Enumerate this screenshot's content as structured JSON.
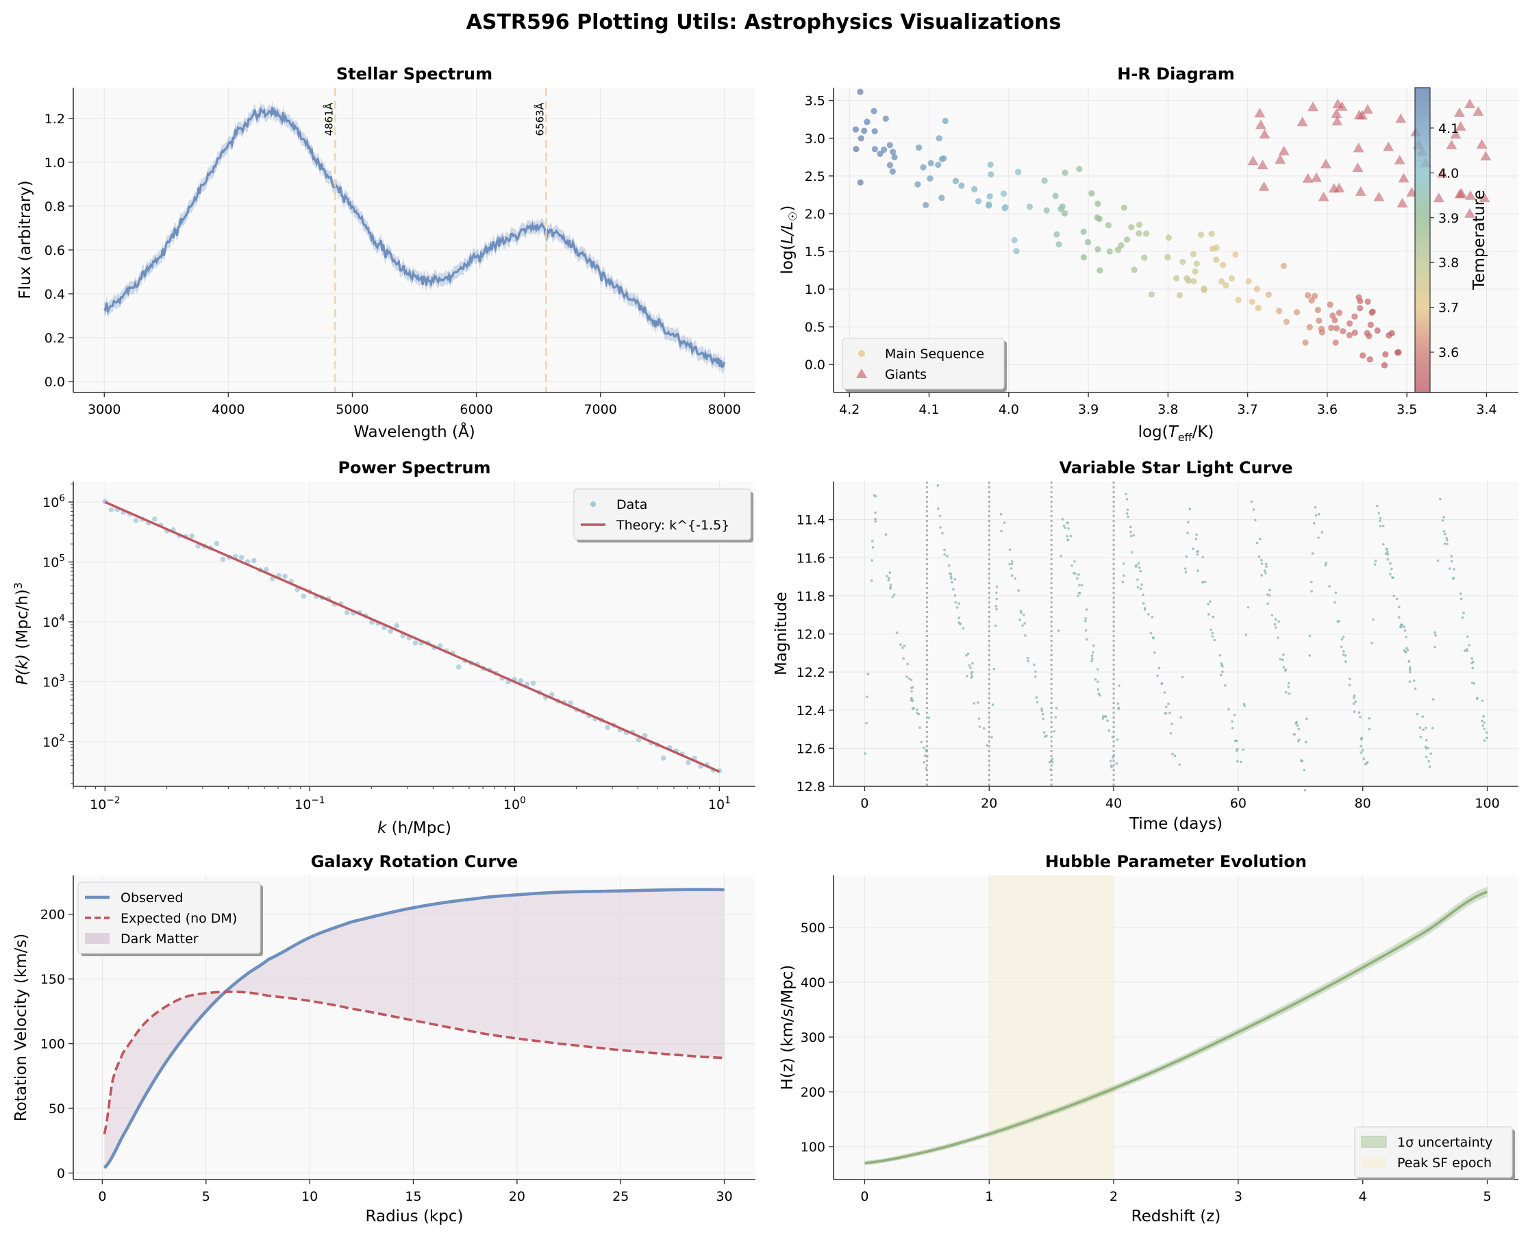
{
  "figure_title": "ASTR596 Plotting Utils: Astrophysics Visualizations",
  "colors": {
    "blue": "#6e8fbe",
    "red": "#c0555e",
    "green": "#8fb07a",
    "teal": "#8cc0c4",
    "panel_bg": "#f9f9f9",
    "grid": "#e6e6e6",
    "fill_purple": "#e0d0dd",
    "band_yellow": "#f5f0df",
    "peach": "#f5cf9e"
  },
  "chart_data": [
    {
      "type": "line",
      "title": "Stellar Spectrum",
      "xlabel": "Wavelength (Å)",
      "ylabel": "Flux (arbitrary)",
      "xlim": [
        2750,
        8250
      ],
      "ylim": [
        -0.05,
        1.34
      ],
      "xticks": [
        3000,
        4000,
        5000,
        6000,
        7000,
        8000
      ],
      "yticks": [
        0.0,
        0.2,
        0.4,
        0.6,
        0.8,
        1.0,
        1.2
      ],
      "series": [
        {
          "x": [
            3000,
            3250,
            3500,
            3750,
            4000,
            4250,
            4500,
            4750,
            5000,
            5250,
            5500,
            5750,
            6000,
            6250,
            6500,
            6750,
            7000,
            7250,
            7500,
            7750,
            8000
          ],
          "y": [
            0.32,
            0.45,
            0.62,
            0.85,
            1.08,
            1.22,
            1.18,
            0.98,
            0.8,
            0.6,
            0.48,
            0.47,
            0.57,
            0.65,
            0.7,
            0.63,
            0.5,
            0.37,
            0.25,
            0.15,
            0.08
          ]
        }
      ],
      "lines": [
        {
          "x": 4861,
          "label": "4861Å"
        },
        {
          "x": 6563,
          "label": "6563Å"
        }
      ]
    },
    {
      "type": "scatter",
      "title": "H-R Diagram",
      "xlabel": "log(T_eff/K)",
      "ylabel": "log(L/L☉)",
      "xlim": [
        4.22,
        3.36
      ],
      "ylim": [
        -0.37,
        3.67
      ],
      "xticks": [
        4.2,
        4.1,
        4.0,
        3.9,
        3.8,
        3.7,
        3.6,
        3.5,
        3.4
      ],
      "yticks": [
        0.0,
        0.5,
        1.0,
        1.5,
        2.0,
        2.5,
        3.0,
        3.5
      ],
      "colorbar": {
        "label": "Temperature",
        "range": [
          3.51,
          4.19
        ],
        "ticks": [
          3.6,
          3.7,
          3.8,
          3.9,
          4.0,
          4.1
        ]
      },
      "legend": [
        "Main Sequence",
        "Giants"
      ],
      "legend_loc": "lower-left",
      "main_sequence": {
        "logT_range": [
          4.2,
          3.51
        ],
        "logL_trend": [
          3.0,
          0.3
        ]
      },
      "giants": {
        "logT_range": [
          3.4,
          3.7
        ],
        "logL_range": [
          2.0,
          3.5
        ]
      }
    },
    {
      "type": "scatter",
      "title": "Power Spectrum",
      "xlabel": "k (h/Mpc)",
      "ylabel": "P(k) (Mpc/h)³",
      "xscale": "log",
      "yscale": "log",
      "xlim": [
        0.007,
        15
      ],
      "ylim": [
        18,
        2200000
      ],
      "xticks": [
        0.01,
        0.1,
        1,
        10
      ],
      "xtick_labels": [
        [
          "10",
          "−2"
        ],
        [
          "10",
          "−1"
        ],
        [
          "10",
          "0"
        ],
        [
          "10",
          "1"
        ]
      ],
      "yticks": [
        100,
        1000,
        10000,
        100000,
        1000000
      ],
      "ytick_labels": [
        [
          "10",
          "2"
        ],
        [
          "10",
          "3"
        ],
        [
          "10",
          "4"
        ],
        [
          "10",
          "5"
        ],
        [
          "10",
          "6"
        ]
      ],
      "legend": [
        "Data",
        "Theory: k^{-1.5}"
      ],
      "legend_loc": "top-right",
      "theory": {
        "amplitude_at_0_01": 1000000,
        "slope": -1.5,
        "k_range": [
          0.01,
          10
        ]
      }
    },
    {
      "type": "scatter",
      "title": "Variable Star Light Curve",
      "xlabel": "Time (days)",
      "ylabel": "Magnitude",
      "xlim": [
        -5,
        105
      ],
      "ylim": [
        12.8,
        11.2
      ],
      "xticks": [
        0,
        20,
        40,
        60,
        80,
        100
      ],
      "yticks": [
        11.4,
        11.6,
        11.8,
        12.0,
        12.2,
        12.4,
        12.6,
        12.8
      ],
      "vlines": [
        10,
        20,
        30,
        40
      ],
      "period_days": 10.1,
      "mag_range": [
        11.33,
        12.72
      ]
    },
    {
      "type": "line",
      "title": "Galaxy Rotation Curve",
      "xlabel": "Radius (kpc)",
      "ylabel": "Rotation Velocity (km/s)",
      "xlim": [
        -1.4,
        31.5
      ],
      "ylim": [
        -5,
        230
      ],
      "xticks": [
        0,
        5,
        10,
        15,
        20,
        25,
        30
      ],
      "yticks": [
        0,
        50,
        100,
        150,
        200
      ],
      "legend": [
        "Observed",
        "Expected (no DM)",
        "Dark Matter"
      ],
      "legend_loc": "top-left",
      "series": [
        {
          "name": "Observed",
          "x": [
            0.1,
            1,
            2,
            3,
            4,
            5,
            6,
            7,
            8,
            10,
            12,
            15,
            18,
            20,
            22,
            25,
            28,
            30
          ],
          "y": [
            4,
            29,
            58,
            84,
            106,
            125,
            141,
            154,
            165,
            182,
            194,
            205,
            212,
            215,
            217,
            218,
            219,
            219
          ]
        },
        {
          "name": "Expected (no DM)",
          "x": [
            0.1,
            0.5,
            1,
            2,
            3,
            4,
            5,
            6,
            7,
            8,
            10,
            12,
            15,
            18,
            20,
            22,
            25,
            28,
            30
          ],
          "y": [
            30,
            72,
            93,
            115,
            128,
            136,
            139,
            140,
            139.5,
            137,
            133,
            127,
            118,
            109,
            104,
            100,
            95,
            91,
            89
          ]
        }
      ]
    },
    {
      "type": "line",
      "title": "Hubble Parameter Evolution",
      "xlabel": "Redshift (z)",
      "ylabel": "H(z) (km/s/Mpc)",
      "xlim": [
        -0.25,
        5.25
      ],
      "ylim": [
        40,
        595
      ],
      "xticks": [
        0,
        1,
        2,
        3,
        4,
        5
      ],
      "yticks": [
        100,
        200,
        300,
        400,
        500
      ],
      "legend": [
        "1σ uncertainty",
        "Peak SF epoch"
      ],
      "legend_loc": "bottom-right",
      "band": [
        1,
        2
      ],
      "series": [
        {
          "x": [
            0,
            0.5,
            1,
            1.5,
            2,
            2.5,
            3,
            3.5,
            4,
            4.5,
            5
          ],
          "y": [
            70,
            91,
            123,
            162,
            206,
            255,
            309,
            366,
            427,
            492,
            565
          ]
        }
      ]
    }
  ]
}
